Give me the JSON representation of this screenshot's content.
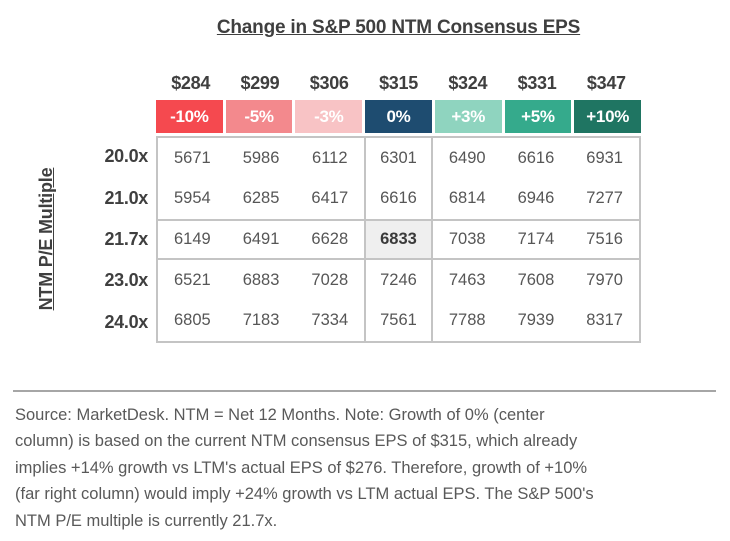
{
  "chart_data": {
    "type": "table",
    "title": "Change in S&P 500 NTM Consensus EPS",
    "y_axis_label": "NTM P/E Multiple",
    "eps_levels": [
      "$284",
      "$299",
      "$306",
      "$315",
      "$324",
      "$331",
      "$347"
    ],
    "growth_columns": [
      "-10%",
      "-5%",
      "-3%",
      "0%",
      "+3%",
      "+5%",
      "+10%"
    ],
    "growth_colors": [
      "#F5494F",
      "#F3898D",
      "#F8C3C5",
      "#1E4C70",
      "#8FD4BF",
      "#35AA8C",
      "#1F7562"
    ],
    "pe_rows": [
      "20.0x",
      "21.0x",
      "21.7x",
      "23.0x",
      "24.0x"
    ],
    "values": [
      [
        5671,
        5986,
        6112,
        6301,
        6490,
        6616,
        6931
      ],
      [
        5954,
        6285,
        6417,
        6616,
        6814,
        6946,
        7277
      ],
      [
        6149,
        6491,
        6628,
        6833,
        7038,
        7174,
        7516
      ],
      [
        6521,
        6883,
        7028,
        7246,
        7463,
        7608,
        7970
      ],
      [
        6805,
        7183,
        7334,
        7561,
        7788,
        7939,
        8317
      ]
    ],
    "highlighted_cell": {
      "pe_row": "21.7x",
      "growth_column": "0%",
      "value": 6833
    },
    "layout": {
      "grid": "outer border, center column and 21.7x row outlined",
      "legend_position": "none"
    }
  },
  "footer": {
    "lines": [
      "Source: MarketDesk. NTM = Net 12 Months. Note: Growth of 0% (center",
      "column) is based on the current NTM consensus EPS of $315, which already",
      "implies +14% growth vs LTM's actual EPS of $276. Therefore, growth of +10%",
      "(far right column) would imply +24% growth vs LTM actual EPS. The S&P 500's",
      "NTM P/E multiple is currently 21.7x."
    ]
  }
}
